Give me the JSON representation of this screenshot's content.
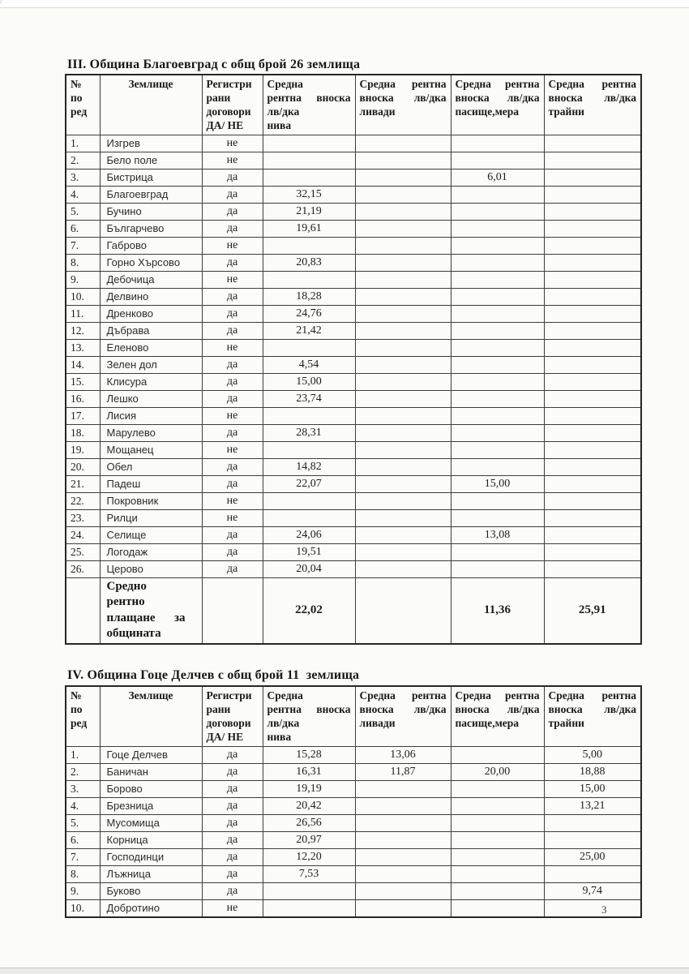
{
  "page": {
    "number": "3"
  },
  "tables": [
    {
      "title": "III. Община Благоевград с общ брой 26 землища",
      "headers": [
        [
          "№",
          "по",
          "ред"
        ],
        [
          "Землище"
        ],
        [
          "Регистри",
          "рани",
          "договори",
          "ДА/ НЕ"
        ],
        [
          "Средна",
          "рентна вноска",
          "лв/дка",
          "нива"
        ],
        [
          "Средна рентна",
          "вноска лв/дка",
          "ливади"
        ],
        [
          "Средна рентна",
          "вноска лв/дка",
          "пасище,мера"
        ],
        [
          "Средна рентна",
          "вноска лв/дка",
          "трайни"
        ]
      ],
      "rows": [
        [
          "1.",
          "Изгрев",
          "не",
          "",
          "",
          "",
          ""
        ],
        [
          "2.",
          "Бело поле",
          "не",
          "",
          "",
          "",
          ""
        ],
        [
          "3.",
          "Бистрица",
          "да",
          "",
          "",
          "6,01",
          ""
        ],
        [
          "4.",
          "Благоевград",
          "да",
          "32,15",
          "",
          "",
          ""
        ],
        [
          "5.",
          "Бучино",
          "да",
          "21,19",
          "",
          "",
          ""
        ],
        [
          "6.",
          "Българчево",
          "да",
          "19,61",
          "",
          "",
          ""
        ],
        [
          "7.",
          "Габрово",
          "не",
          "",
          "",
          "",
          ""
        ],
        [
          "8.",
          "Горно Хърсово",
          "да",
          "20,83",
          "",
          "",
          ""
        ],
        [
          "9.",
          "Дебочица",
          "не",
          "",
          "",
          "",
          ""
        ],
        [
          "10.",
          "Делвино",
          "да",
          "18,28",
          "",
          "",
          ""
        ],
        [
          "11.",
          "Дренково",
          "да",
          "24,76",
          "",
          "",
          ""
        ],
        [
          "12.",
          "Дъбрава",
          "да",
          "21,42",
          "",
          "",
          ""
        ],
        [
          "13.",
          "Еленово",
          "не",
          "",
          "",
          "",
          ""
        ],
        [
          "14.",
          "Зелен дол",
          "да",
          "4,54",
          "",
          "",
          ""
        ],
        [
          "15.",
          "Клисура",
          "да",
          "15,00",
          "",
          "",
          ""
        ],
        [
          "16.",
          "Лешко",
          "да",
          "23,74",
          "",
          "",
          ""
        ],
        [
          "17.",
          "Лисия",
          "не",
          "",
          "",
          "",
          ""
        ],
        [
          "18.",
          "Марулево",
          "да",
          "28,31",
          "",
          "",
          ""
        ],
        [
          "19.",
          "Мощанец",
          "не",
          "",
          "",
          "",
          ""
        ],
        [
          "20.",
          "Обел",
          "да",
          "14,82",
          "",
          "",
          ""
        ],
        [
          "21.",
          "Падеш",
          "да",
          "22,07",
          "",
          "15,00",
          ""
        ],
        [
          "22.",
          "Покровник",
          "не",
          "",
          "",
          "",
          ""
        ],
        [
          "23.",
          "Рилци",
          "не",
          "",
          "",
          "",
          ""
        ],
        [
          "24.",
          "Селище",
          "да",
          "24,06",
          "",
          "13,08",
          ""
        ],
        [
          "25.",
          "Логодаж",
          "да",
          "19,51",
          "",
          "",
          ""
        ],
        [
          "26.",
          "Церово",
          "да",
          "20,04",
          "",
          "",
          ""
        ]
      ],
      "summary_row": [
        "",
        "Средно рентно плащане за общината",
        "",
        "22,02",
        "",
        "11,36",
        "25,91"
      ]
    },
    {
      "title": "IV. Община Гоце Делчев с общ брой 11  землища",
      "headers": [
        [
          "№",
          "по",
          "ред"
        ],
        [
          "Землище"
        ],
        [
          "Регистри",
          "рани",
          "договори",
          "ДА/ НЕ"
        ],
        [
          "Средна",
          "рентна вноска",
          "лв/дка",
          "нива"
        ],
        [
          "Средна рентна",
          "вноска лв/дка",
          "ливади"
        ],
        [
          "Средна рентна",
          "вноска лв/дка",
          "пасище,мера"
        ],
        [
          "Средна рентна",
          "вноска лв/дка",
          "трайни"
        ]
      ],
      "rows": [
        [
          "1.",
          "Гоце Делчев",
          "да",
          "15,28",
          "13,06",
          "",
          "5,00"
        ],
        [
          "2.",
          "Баничан",
          "да",
          "16,31",
          "11,87",
          "20,00",
          "18,88"
        ],
        [
          "3.",
          "Борово",
          "да",
          "19,19",
          "",
          "",
          "15,00"
        ],
        [
          "4.",
          "Брезница",
          "да",
          "20,42",
          "",
          "",
          "13,21"
        ],
        [
          "5.",
          "Мусомища",
          "да",
          "26,56",
          "",
          "",
          ""
        ],
        [
          "6.",
          "Корница",
          "да",
          "20,97",
          "",
          "",
          ""
        ],
        [
          "7.",
          "Господинци",
          "да",
          "12,20",
          "",
          "",
          "25,00"
        ],
        [
          "8.",
          "Лъжница",
          "да",
          "7,53",
          "",
          "",
          ""
        ],
        [
          "9.",
          "Буково",
          "да",
          "",
          "",
          "",
          "9,74"
        ],
        [
          "10.",
          "Добротино",
          "не",
          "",
          "",
          "",
          ""
        ]
      ]
    }
  ]
}
